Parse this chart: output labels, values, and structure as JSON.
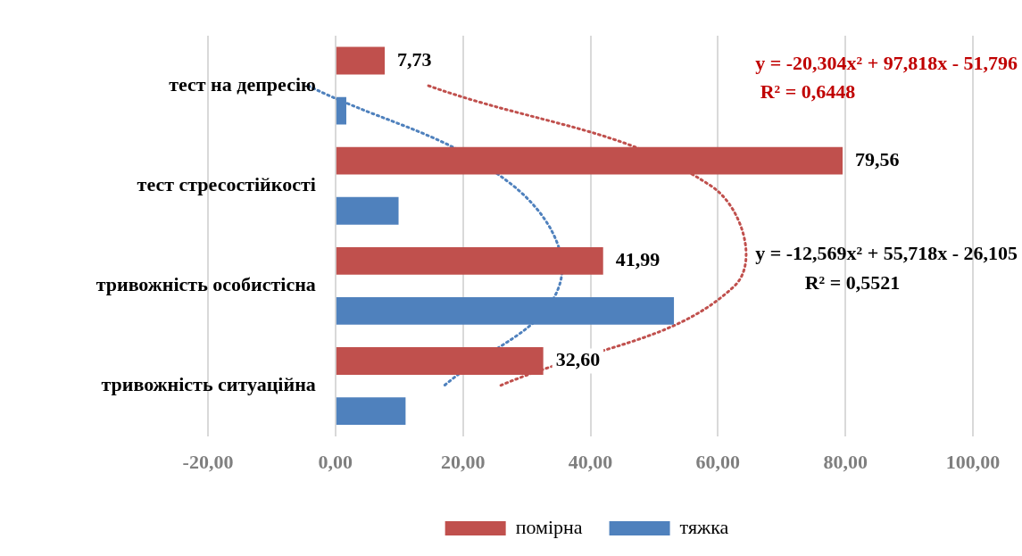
{
  "chart_data": {
    "type": "bar",
    "orientation": "horizontal",
    "categories": [
      "тест на депресію",
      "тест стресостійкості",
      "тривожність особистісна",
      "тривожність ситуаційна"
    ],
    "series": [
      {
        "name": "помірна",
        "color": "#c0504d",
        "values": [
          7.73,
          79.56,
          41.99,
          32.6
        ],
        "value_labels": [
          "7,73",
          "79,56",
          "41,99",
          "32,60"
        ]
      },
      {
        "name": "тяжка",
        "color": "#4f81bd",
        "values": [
          1.7,
          9.9,
          53.1,
          11
        ]
      },
      {
        "type": "line",
        "color": "#c0504d",
        "line_style": "dotted",
        "values": [
          14.6,
          58.9,
          62.6,
          25.7
        ]
      },
      {
        "type": "line",
        "color": "#4f81bd",
        "line_style": "dotted",
        "values": [
          -4.3,
          27.9,
          35.1,
          17
        ]
      }
    ],
    "xlim": [
      -20,
      100
    ],
    "xticks": [
      {
        "value": -20,
        "label": "-20,00"
      },
      {
        "value": 0,
        "label": "0,00"
      },
      {
        "value": 20,
        "label": "20,00"
      },
      {
        "value": 40,
        "label": "40,00"
      },
      {
        "value": 60,
        "label": "60,00"
      },
      {
        "value": 80,
        "label": "80,00"
      },
      {
        "value": 100,
        "label": "100,00"
      }
    ],
    "grid": "x",
    "legend": "bottom",
    "marker": "none",
    "annotations": [
      "y = -20,304x² + 97,818x - 51,796",
      "R² = 0,6448",
      "y = -12,569x² + 55,718x - 26,105",
      "R² = 0,5521"
    ]
  }
}
